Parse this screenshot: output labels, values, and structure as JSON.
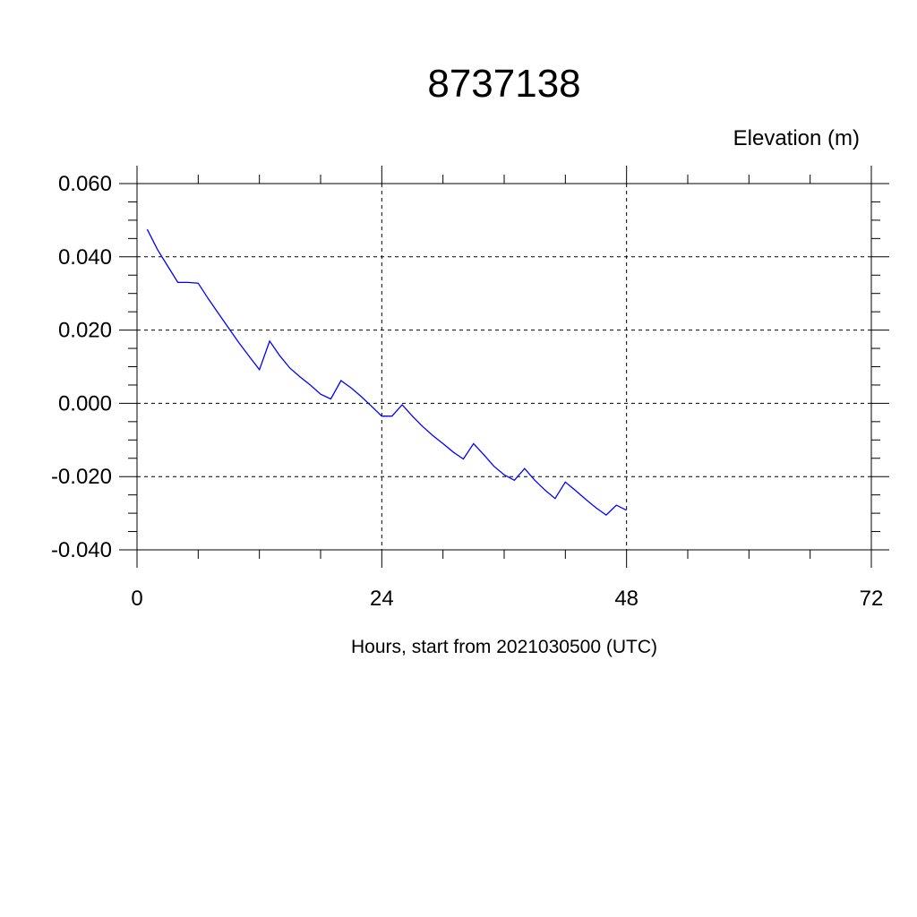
{
  "chart_data": {
    "type": "line",
    "title": "8737138",
    "ylabel": "Elevation (m)",
    "xlabel": "Hours, start from 2021030500 (UTC)",
    "xlim": [
      0,
      72
    ],
    "ylim": [
      -0.04,
      0.06
    ],
    "x_ticks": [
      0,
      24,
      48,
      72
    ],
    "x_tick_labels": [
      "0",
      "24",
      "48",
      "72"
    ],
    "y_ticks": [
      -0.04,
      -0.02,
      0.0,
      0.02,
      0.04,
      0.06
    ],
    "y_tick_labels": [
      "-0.040",
      "-0.020",
      "0.000",
      "0.020",
      "0.040",
      "0.060"
    ],
    "grid": true,
    "series": [
      {
        "color": "#0000ff",
        "x": [
          1,
          2,
          3,
          4,
          5,
          6,
          7,
          8,
          9,
          10,
          11,
          12,
          13,
          14,
          15,
          16,
          17,
          18,
          19,
          20,
          21,
          22,
          23,
          24,
          25,
          26,
          27,
          28,
          29,
          30,
          31,
          32,
          33,
          34,
          35,
          36,
          37,
          38,
          39,
          40,
          41,
          42,
          43,
          44,
          45,
          46,
          47,
          48
        ],
        "y": [
          0.0475,
          0.042,
          0.0375,
          0.033,
          0.033,
          0.0328,
          0.0285,
          0.0245,
          0.0205,
          0.0165,
          0.0128,
          0.0092,
          0.017,
          0.013,
          0.0096,
          0.0072,
          0.005,
          0.0025,
          0.0012,
          0.0062,
          0.0042,
          0.0018,
          -0.0008,
          -0.0035,
          -0.0035,
          -0.0004,
          -0.0035,
          -0.0063,
          -0.0088,
          -0.011,
          -0.0133,
          -0.0152,
          -0.011,
          -0.014,
          -0.0172,
          -0.0195,
          -0.021,
          -0.0178,
          -0.021,
          -0.0237,
          -0.026,
          -0.0215,
          -0.0238,
          -0.0262,
          -0.0285,
          -0.0305,
          -0.0278,
          -0.0292
        ]
      }
    ]
  }
}
